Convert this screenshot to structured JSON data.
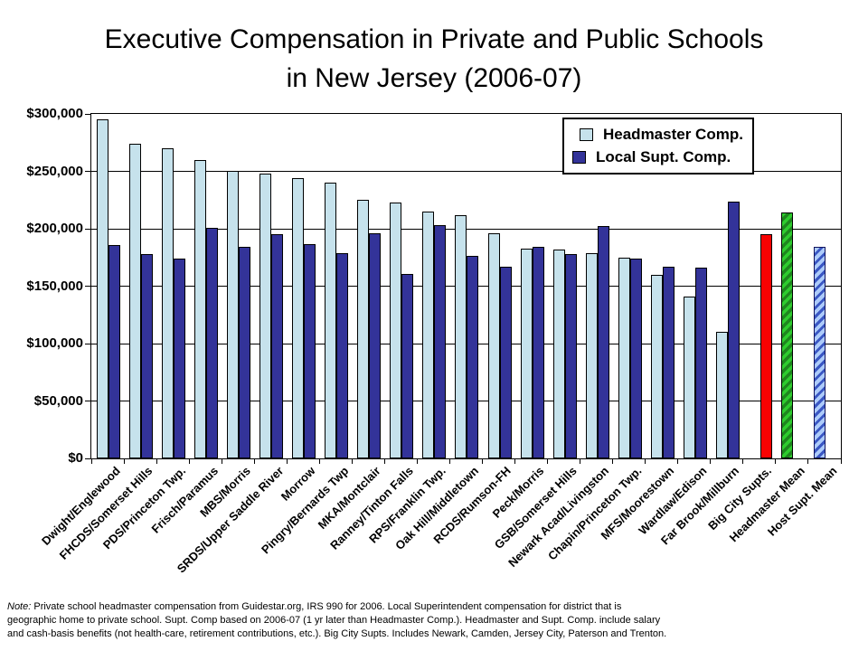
{
  "title": {
    "line1": "Executive Compensation in Private and Public Schools",
    "line2": "in New Jersey (2006-07)"
  },
  "legend": {
    "position": "top-right",
    "items": [
      {
        "label": "Headmaster Comp.",
        "color": "#C6E2EC"
      },
      {
        "label": "Local Supt. Comp.",
        "color": "#333399"
      }
    ]
  },
  "y_axis": {
    "tick_labels": [
      "$300,000",
      "$250,000",
      "$200,000",
      "$150,000",
      "$100,000",
      "$50,000",
      "$0"
    ],
    "min": 0,
    "max": 300000,
    "step": 50000
  },
  "chart_data": {
    "type": "bar",
    "title": "Executive Compensation in Private and Public Schools in New Jersey (2006-07)",
    "xlabel": "",
    "ylabel": "",
    "ylim": [
      0,
      300000
    ],
    "grid": true,
    "legend_position": "top-right",
    "categories": [
      "Dwight/Englewood",
      "FHCDS/Somerset Hills",
      "PDS/Princeton Twp.",
      "Frisch/Paramus",
      "MBS/Morris",
      "SRDS/Upper Saddle River",
      "Morrow",
      "Pingry/Bernards Twp",
      "MKA/Montclair",
      "Ranney/Tinton Falls",
      "RPS/Franklin Twp.",
      "Oak Hill/Middletown",
      "RCDS/Rumson-FH",
      "Peck/Morris",
      "GSB/Somerset Hills",
      "Newark Acad/Livingston",
      "Chapin/Princeton Twp.",
      "MFS/Moorestown",
      "Wardlaw/Edison",
      "Far Brook/Millburn",
      "Big City Supts.",
      "Headmaster Mean",
      "Host Supt. Mean"
    ],
    "series": [
      {
        "name": "Headmaster Comp.",
        "color": "#C6E2EC",
        "values": [
          295000,
          274000,
          270000,
          260000,
          250000,
          248000,
          244000,
          240000,
          225000,
          223000,
          215000,
          212000,
          196000,
          183000,
          182000,
          179000,
          175000,
          160000,
          141000,
          110000,
          null,
          null,
          null
        ]
      },
      {
        "name": "Local Supt. Comp.",
        "color": "#333399",
        "values": [
          186000,
          178000,
          174000,
          201000,
          184000,
          195000,
          187000,
          179000,
          196000,
          161000,
          203000,
          176000,
          167000,
          184000,
          178000,
          202000,
          174000,
          167000,
          166000,
          224000,
          null,
          null,
          null
        ]
      }
    ],
    "special_bars": [
      {
        "category": "Big City Supts.",
        "value": 195000,
        "style": "red",
        "position": "second"
      },
      {
        "category": "Headmaster Mean",
        "value": 214000,
        "style": "green-hatch",
        "position": "first"
      },
      {
        "category": "Host Supt. Mean",
        "value": 184000,
        "style": "blue-hatch",
        "position": "first"
      }
    ]
  },
  "note": {
    "prefix": "Note:",
    "lines": [
      " Private school headmaster compensation from Guidestar.org, IRS 990 for 2006. Local Superintendent compensation for district that is",
      "geographic home to private school. Supt. Comp based on 2006-07 (1 yr later than Headmaster Comp.). Headmaster and Supt. Comp. include salary",
      "and cash-basis benefits (not health-care, retirement contributions, etc.). Big City Supts. Includes Newark, Camden, Jersey City, Paterson and Trenton."
    ]
  }
}
